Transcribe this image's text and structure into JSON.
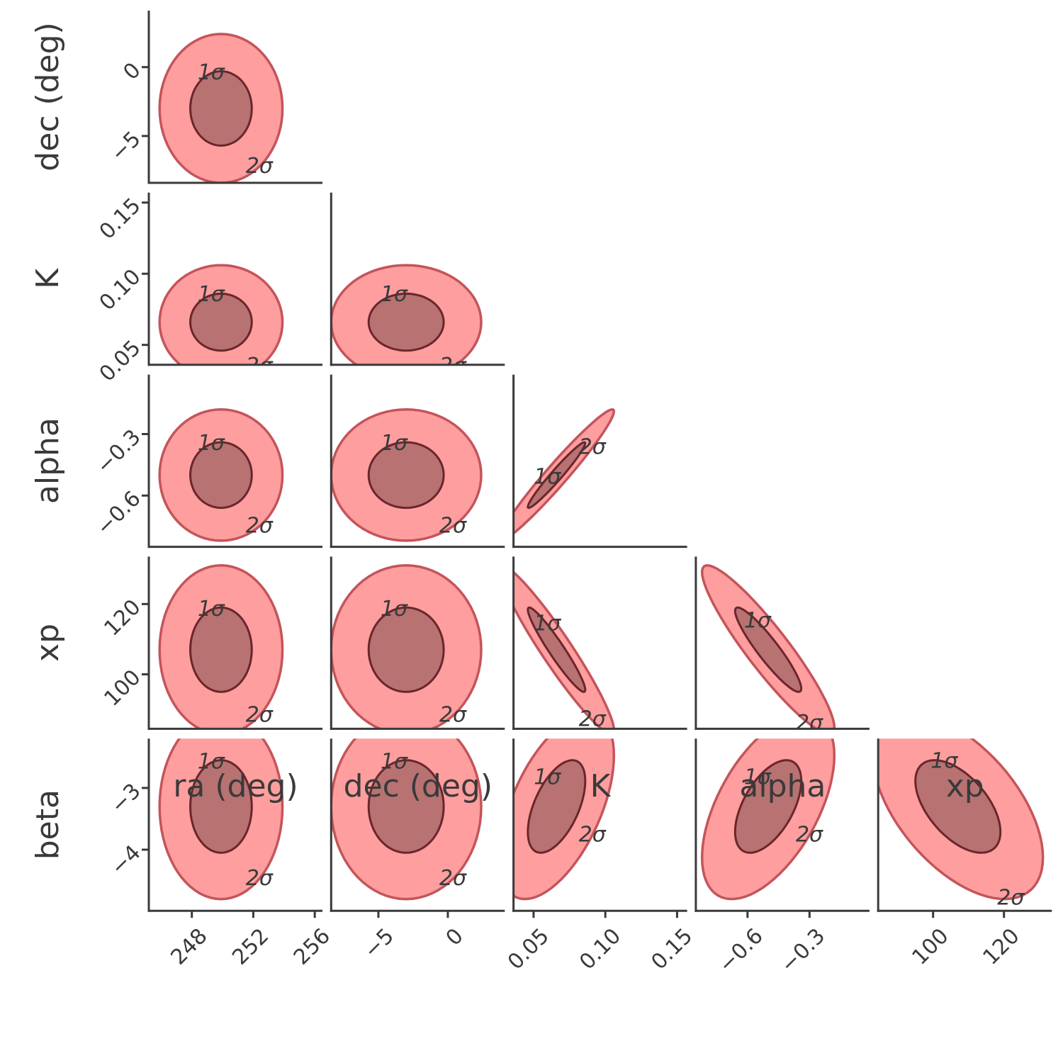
{
  "chart_data": {
    "type": "corner",
    "levels": [
      "1σ",
      "2σ"
    ],
    "colors": {
      "outer_fill": "#ff9e9e",
      "outer_line": "#c4545b",
      "inner_fill": "#b87272",
      "inner_line": "#6a262c",
      "axis": "#3a3a3a"
    },
    "variables": [
      {
        "name": "ra (deg)",
        "lim": [
          245.2,
          256.5
        ],
        "ticks": [
          248,
          252,
          256
        ],
        "center": 249.9,
        "sigma": 2.0
      },
      {
        "name": "dec (deg)",
        "lim": [
          -8.4,
          4.1
        ],
        "ticks": [
          {
            "value": -5,
            "label": "−5"
          },
          0
        ],
        "center": -3.0,
        "sigma": 2.7
      },
      {
        "name": "K",
        "lim": [
          0.036,
          0.157
        ],
        "ticks": [
          0.05,
          {
            "value": 0.1,
            "label": "0.10"
          },
          0.15
        ],
        "center": 0.066,
        "sigma": 0.02
      },
      {
        "name": "alpha",
        "lim": [
          -0.85,
          -0.01
        ],
        "ticks": [
          {
            "value": -0.6,
            "label": "−0.6"
          },
          {
            "value": -0.3,
            "label": "−0.3"
          }
        ],
        "center": -0.5,
        "sigma": 0.16
      },
      {
        "name": "xp",
        "lim": [
          84.5,
          133.5
        ],
        "ticks": [
          100,
          120
        ],
        "center": 107,
        "sigma": 12
      },
      {
        "name": "beta",
        "lim": [
          -4.99,
          -2.2
        ],
        "ticks": [
          {
            "value": -3,
            "label": "−3"
          },
          {
            "value": -4,
            "label": "−4"
          }
        ],
        "center": -3.3,
        "sigma": 0.75
      }
    ],
    "panels": [
      {
        "x_var": 0,
        "y_var": 1,
        "rho": 0
      },
      {
        "x_var": 0,
        "y_var": 2,
        "rho": 0
      },
      {
        "x_var": 1,
        "y_var": 2,
        "rho": 0
      },
      {
        "x_var": 0,
        "y_var": 3,
        "rho": 0
      },
      {
        "x_var": 1,
        "y_var": 3,
        "rho": 0
      },
      {
        "x_var": 2,
        "y_var": 3,
        "rho": 0.97
      },
      {
        "x_var": 0,
        "y_var": 4,
        "rho": 0
      },
      {
        "x_var": 1,
        "y_var": 4,
        "rho": 0
      },
      {
        "x_var": 2,
        "y_var": 4,
        "rho": -0.95
      },
      {
        "x_var": 3,
        "y_var": 4,
        "rho": -0.92
      },
      {
        "x_var": 0,
        "y_var": 5,
        "rho": 0
      },
      {
        "x_var": 1,
        "y_var": 5,
        "rho": 0
      },
      {
        "x_var": 2,
        "y_var": 5,
        "rho": 0.55
      },
      {
        "x_var": 3,
        "y_var": 5,
        "rho": 0.55
      },
      {
        "x_var": 4,
        "y_var": 5,
        "rho": -0.55
      }
    ]
  }
}
